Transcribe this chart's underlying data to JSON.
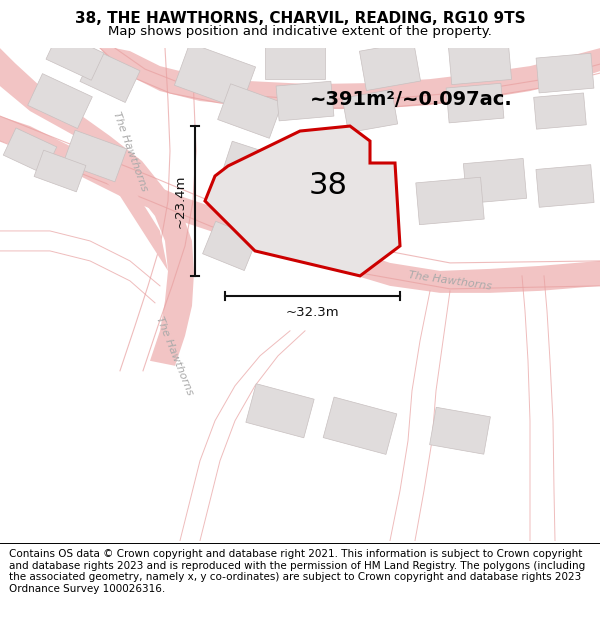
{
  "title": "38, THE HAWTHORNS, CHARVIL, READING, RG10 9TS",
  "subtitle": "Map shows position and indicative extent of the property.",
  "footer": "Contains OS data © Crown copyright and database right 2021. This information is subject to Crown copyright and database rights 2023 and is reproduced with the permission of HM Land Registry. The polygons (including the associated geometry, namely x, y co-ordinates) are subject to Crown copyright and database rights 2023 Ordnance Survey 100026316.",
  "map_bg": "#f2f0f0",
  "road_color": "#f2c4c4",
  "building_color": "#e0dcdc",
  "building_edge": "#c8c0c0",
  "plot_color": "#e8e4e4",
  "plot_edge": "#cc0000",
  "plot_label": "38",
  "area_label": "~391m²/~0.097ac.",
  "dim_h": "~23.4m",
  "dim_w": "~32.3m",
  "title_fontsize": 11,
  "subtitle_fontsize": 9.5,
  "footer_fontsize": 7.5,
  "road_label_color": "#aaaaaa",
  "dim_color": "#111111"
}
